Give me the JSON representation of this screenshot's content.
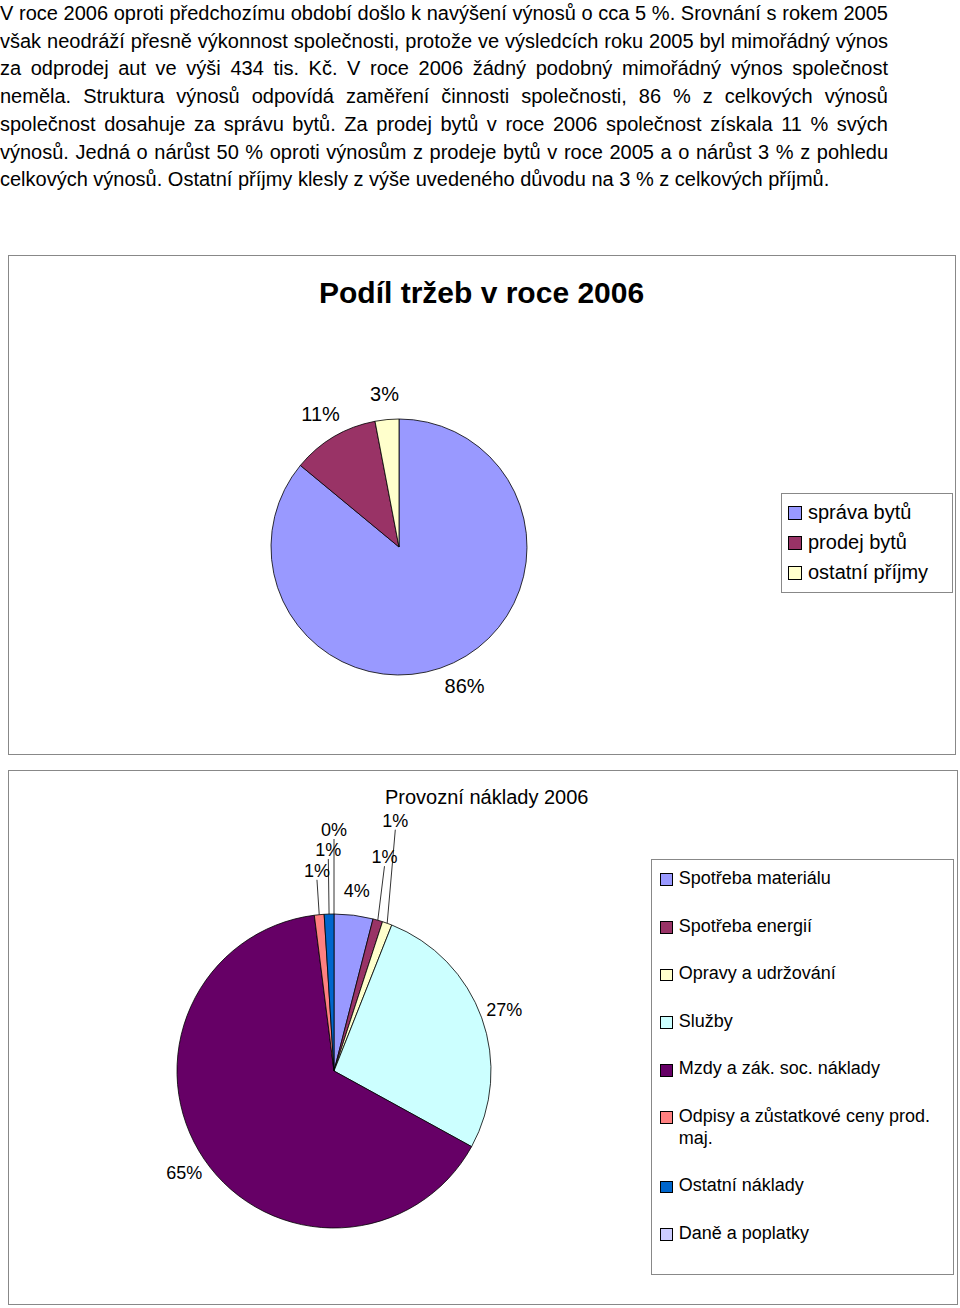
{
  "document": {
    "paragraph": "V roce 2006 oproti předchozímu období došlo k navýšení výnosů o cca 5 %. Srovnání s rokem 2005 však neodráží přesně výkonnost společnosti, protože ve výsledcích roku 2005 byl mimořádný výnos za odprodej aut ve výši 434 tis. Kč. V roce 2006 žádný podobný mimořádný výnos společnost neměla. Struktura výnosů odpovídá zaměření činnosti společnosti, 86 % z celkových výnosů společnost dosahuje za správu bytů. Za prodej bytů v roce 2006 společnost získala 11 % svých výnosů. Jedná o nárůst 50 % oproti výnosům z prodeje bytů v roce 2005 a o nárůst 3 % z pohledu celkových výnosů. Ostatní příjmy klesly z výše uvedeného důvodu na 3 % z celkových příjmů."
  },
  "chart_data": [
    {
      "type": "pie",
      "title": "Podíl tržeb v roce 2006",
      "categories": [
        "správa bytů",
        "prodej bytů",
        "ostatní příjmy"
      ],
      "values": [
        86,
        11,
        3
      ],
      "value_labels": [
        "86%",
        "11%",
        "3%"
      ],
      "colors": [
        "#9999ff",
        "#993366",
        "#ffffcc"
      ],
      "data_labels": true,
      "legend": "right"
    },
    {
      "type": "pie",
      "title": "Provozní náklady 2006",
      "categories": [
        "Spotřeba materiálu",
        "Spotřeba energií",
        "Opravy a udržování",
        "Služby",
        "Mzdy a zák. soc. náklady",
        "Odpisy a zůstatkové ceny prod. maj.",
        "Ostatní náklady",
        "Daně a poplatky"
      ],
      "values": [
        4,
        1,
        1,
        27,
        65,
        1,
        1,
        0
      ],
      "value_labels": [
        "4%",
        "1%",
        "1%",
        "27%",
        "65%",
        "1%",
        "1%",
        "0%"
      ],
      "colors": [
        "#9999ff",
        "#993366",
        "#ffffcc",
        "#ccffff",
        "#660066",
        "#ff8080",
        "#0066cc",
        "#ccccff"
      ],
      "data_labels": true,
      "legend": "right"
    }
  ]
}
